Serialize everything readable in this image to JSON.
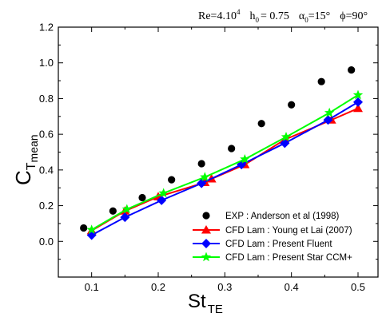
{
  "chart_data": {
    "type": "scatter",
    "title_parts": {
      "re": "Re=4.10",
      "re_exp": "4",
      "h0": "h",
      "h0_sub": "0",
      "h0_val": "= 0.75",
      "alpha": "α",
      "alpha_sub": "0",
      "alpha_val": "=15°",
      "phi": "ϕ=90°"
    },
    "xlabel": "St",
    "xlabel_sub": "TE",
    "ylabel": "C",
    "ylabel_sub": "T",
    "ylabel_subsub": "mean",
    "xlim": [
      0.05,
      0.53
    ],
    "ylim": [
      -0.2,
      1.2
    ],
    "x_ticks": [
      0.1,
      0.2,
      0.3,
      0.4,
      0.5
    ],
    "x_tick_labels": [
      "0.1",
      "0.2",
      "0.3",
      "0.4",
      "0.5"
    ],
    "x_minor_ticks": [
      0.05,
      0.15,
      0.25,
      0.35,
      0.45
    ],
    "y_ticks": [
      0.0,
      0.2,
      0.4,
      0.6,
      0.8,
      1.0,
      1.2
    ],
    "y_tick_labels": [
      "0.0",
      "0.2",
      "0.4",
      "0.6",
      "0.8",
      "1.0",
      "1.2"
    ],
    "y_minor_ticks": [
      -0.1,
      0.1,
      0.3,
      0.5,
      0.7,
      0.9,
      1.1
    ],
    "grid": false,
    "legend_position": "bottom-right",
    "series": [
      {
        "name": "EXP :  Anderson et al (1998)",
        "marker": "circle",
        "color": "#000000",
        "line": false,
        "x": [
          0.088,
          0.132,
          0.176,
          0.22,
          0.265,
          0.31,
          0.355,
          0.4,
          0.445,
          0.49
        ],
        "y": [
          0.075,
          0.17,
          0.245,
          0.345,
          0.435,
          0.52,
          0.66,
          0.765,
          0.895,
          0.96
        ]
      },
      {
        "name": "CFD Lam :  Young et  Lai (2007)",
        "marker": "triangle",
        "color": "#ff0000",
        "line": true,
        "x": [
          0.1,
          0.15,
          0.2,
          0.27,
          0.28,
          0.33,
          0.39,
          0.46,
          0.5
        ],
        "y": [
          0.06,
          0.17,
          0.25,
          0.33,
          0.35,
          0.43,
          0.57,
          0.68,
          0.745
        ]
      },
      {
        "name": "CFD Lam : Present Fluent",
        "marker": "diamond",
        "color": "#0000ff",
        "line": true,
        "x": [
          0.1,
          0.15,
          0.205,
          0.265,
          0.325,
          0.39,
          0.455,
          0.5
        ],
        "y": [
          0.035,
          0.135,
          0.23,
          0.325,
          0.43,
          0.55,
          0.68,
          0.78
        ]
      },
      {
        "name": "CFD Lam : Present Star CCM+",
        "marker": "star",
        "color": "#00ff00",
        "line": true,
        "x": [
          0.1,
          0.153,
          0.208,
          0.27,
          0.33,
          0.392,
          0.457,
          0.5
        ],
        "y": [
          0.065,
          0.18,
          0.27,
          0.36,
          0.46,
          0.585,
          0.72,
          0.82
        ]
      }
    ]
  }
}
